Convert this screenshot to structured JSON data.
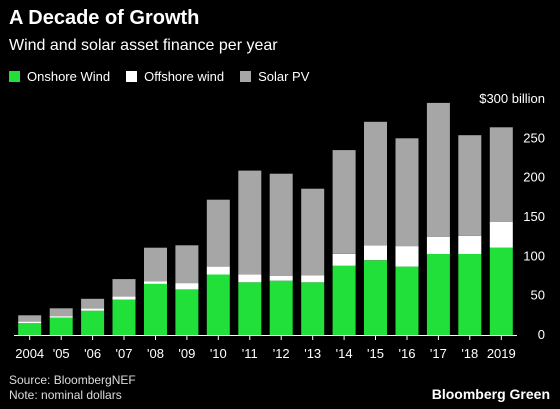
{
  "chart_data": {
    "type": "bar",
    "stacked": true,
    "title": "A Decade of Growth",
    "subtitle": "Wind and solar asset finance per year",
    "categories": [
      "2004",
      "'05",
      "'06",
      "'07",
      "'08",
      "'09",
      "'10",
      "'11",
      "'12",
      "'13",
      "'14",
      "'15",
      "'16",
      "'17",
      "'18",
      "2019"
    ],
    "series": [
      {
        "name": "Onshore Wind",
        "color": "#22e03a",
        "values": [
          15,
          22,
          31,
          45,
          65,
          58,
          77,
          67,
          69,
          67,
          88,
          95,
          87,
          103,
          103,
          111
        ]
      },
      {
        "name": "Offshore wind",
        "color": "#ffffff",
        "values": [
          2,
          2,
          3,
          4,
          3,
          8,
          10,
          10,
          6,
          9,
          15,
          19,
          26,
          22,
          23,
          33
        ]
      },
      {
        "name": "Solar PV",
        "color": "#a6a6a6",
        "values": [
          8,
          10,
          12,
          22,
          43,
          48,
          85,
          132,
          130,
          110,
          132,
          157,
          137,
          170,
          128,
          120
        ]
      }
    ],
    "ylim": [
      0,
      300
    ],
    "yticks": [
      "0",
      "50",
      "100",
      "150",
      "200",
      "250",
      "$300 billion"
    ],
    "ytick_values": [
      0,
      50,
      100,
      150,
      200,
      250,
      300
    ],
    "legend_position": "top-left",
    "grid": false
  },
  "footer": {
    "source": "Source: BloombergNEF",
    "note": "Note: nominal dollars",
    "brand": "Bloomberg Green"
  }
}
